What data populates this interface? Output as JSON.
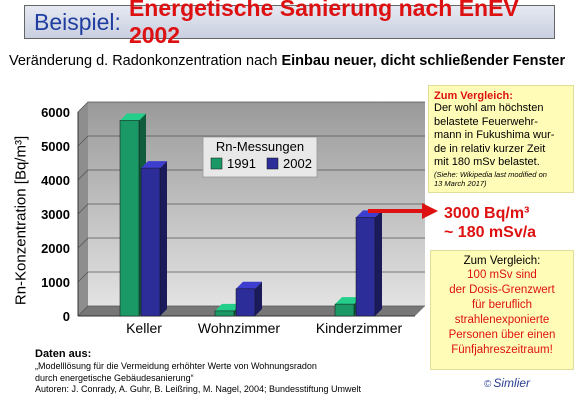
{
  "header": {
    "prefix": "Beispiel:",
    "title": "Energetische Sanierung nach EnEV 2002"
  },
  "subtitle": {
    "normal": "Veränderung d. Radonkonzentration nach ",
    "bold": "Einbau neuer, dicht schließender Fenster"
  },
  "chart_data": {
    "type": "bar",
    "title": "",
    "ylabel": "Rn-Konzentration [Bq/m³]",
    "xlabel": "",
    "ylim": [
      0,
      6000
    ],
    "y_ticks": [
      "0",
      "1000",
      "2000",
      "3000",
      "4000",
      "5000",
      "6000"
    ],
    "categories": [
      "Keller",
      "Wohnzimmer",
      "Kinderzimmer"
    ],
    "legend_title": "Rn-Messungen",
    "legend_position": "top-center",
    "grid": true,
    "series": [
      {
        "name": "1991",
        "values": [
          5750,
          150,
          350
        ],
        "color": "#1a9966"
      },
      {
        "name": "2002",
        "values": [
          4350,
          800,
          2900
        ],
        "color": "#2d2d99"
      }
    ]
  },
  "comparison1": {
    "title": "Zum Vergleich:",
    "lines": [
      "Der wohl am höchsten",
      "belastete Feuerwehr-",
      "mann in Fukushima wur-",
      "de in relativ kurzer Zeit",
      "mit 180 mSv belastet."
    ],
    "note_lines": [
      "(Siehe: Wikipedia last modified on",
      "13 March 2017)"
    ]
  },
  "highlight": {
    "line1": "3000 Bq/m³",
    "line2": "~ 180 mSv/a"
  },
  "comparison2": {
    "title": "Zum Vergleich:",
    "text": "100 mSv sind\nder Dosis-Grenzwert\nfür  beruflich\nstrahlenexponierte\nPersonen über einen\nFünfjahreszeitraum!"
  },
  "source": {
    "heading": "Daten aus:",
    "lines": [
      "„Modelllösung für die Vermeidung erhöhter Werte von Wohnungsradon",
      "durch energetische Gebäudesanierung“",
      "Autoren: J. Conrady, A. Guhr, B. Leißring, M. Nagel,  2004; Bundesstiftung Umwelt"
    ]
  },
  "logo": {
    "copyright": "©",
    "text": "Simlier"
  },
  "colors": {
    "accent_red": "#dd1111",
    "title_blue": "#1f3ea0",
    "note_yellow": "#fffcb8"
  }
}
